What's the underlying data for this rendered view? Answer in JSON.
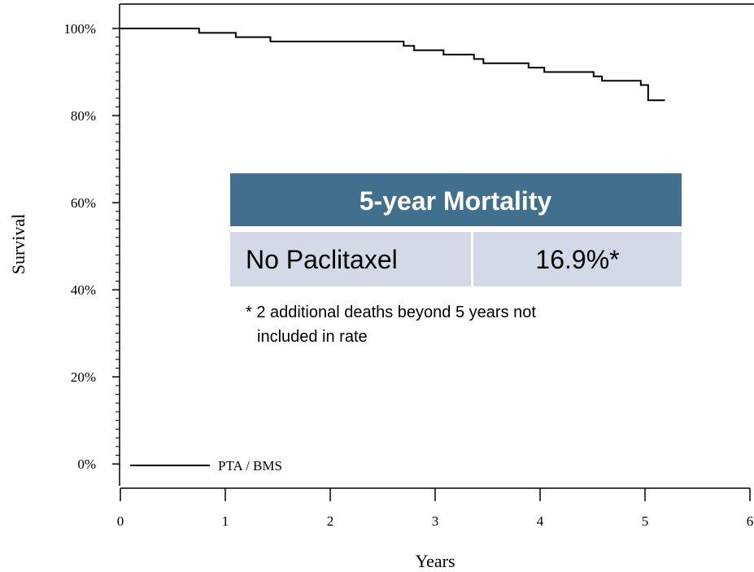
{
  "chart_data": {
    "type": "line",
    "x_label": "Years",
    "y_label": "Survival",
    "xlim": [
      0,
      6.04
    ],
    "ylim": [
      -5,
      105.6
    ],
    "xticks": [
      0,
      1,
      2,
      3,
      4,
      5,
      6
    ],
    "yticks": [
      {
        "value": 0,
        "label": "0%"
      },
      {
        "value": 20,
        "label": "20%"
      },
      {
        "value": 40,
        "label": "40%"
      },
      {
        "value": 60,
        "label": "60%"
      },
      {
        "value": 80,
        "label": "80%"
      },
      {
        "value": 100,
        "label": "100%"
      }
    ],
    "x": [
      0,
      0.75,
      0.75,
      1.1,
      1.1,
      1.43,
      1.43,
      2.7,
      2.7,
      2.8,
      2.8,
      3.08,
      3.08,
      3.37,
      3.37,
      3.46,
      3.46,
      3.89,
      3.89,
      4.04,
      4.04,
      4.51,
      4.51,
      4.59,
      4.59,
      4.96,
      4.96,
      5.03,
      5.03,
      5.19
    ],
    "series": [
      {
        "name": "PTA / BMS",
        "color": "#000000",
        "values": [
          100,
          100,
          99,
          99,
          98,
          98,
          97,
          97,
          96,
          96,
          95,
          95,
          94,
          94,
          93,
          93,
          92,
          92,
          91,
          91,
          90,
          90,
          89,
          89,
          88,
          88,
          87,
          87,
          83.5,
          83.5
        ]
      }
    ],
    "legend": "lower left",
    "table": {
      "title": "5-year Mortality",
      "row": [
        "No Paclitaxel",
        "16.9%*"
      ],
      "footnote": [
        "* 2 additional deaths beyond 5 years not",
        "included in rate"
      ],
      "header_color": "#41708f",
      "row_color": "#d3d9e6"
    }
  }
}
